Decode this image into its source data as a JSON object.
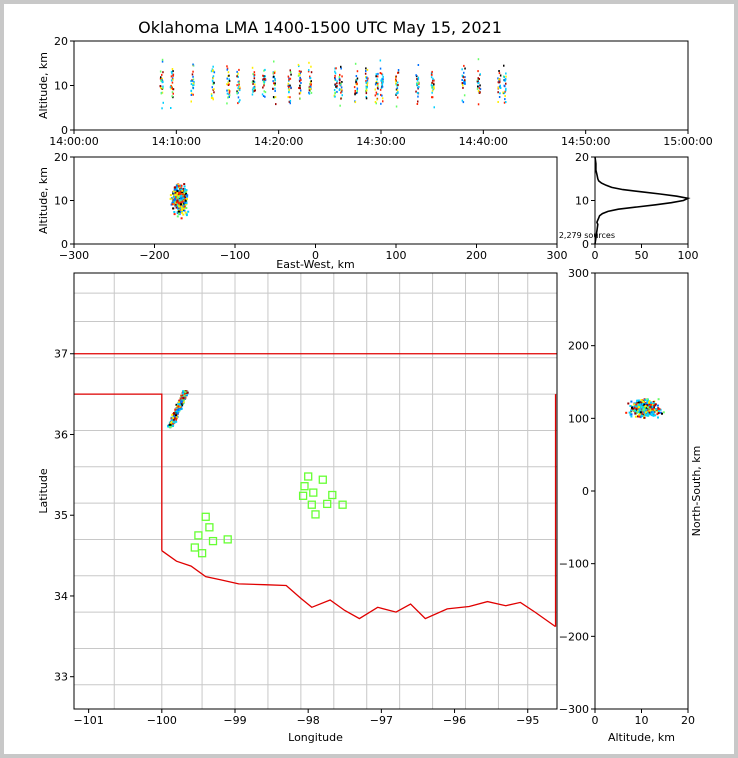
{
  "title": "Oklahoma LMA 1400-1500 UTC May 15, 2021",
  "source_count_label": "2,279 sources",
  "colors": {
    "frame": "#c8c8c8",
    "state_border": "#e00000",
    "county_lines": "#c8c8c8",
    "stations": "#66ff33",
    "profile": "#000000",
    "source_palette": [
      "#00cfff",
      "#0070ff",
      "#66ff66",
      "#ffee00",
      "#ff2200",
      "#990000",
      "#000000"
    ]
  },
  "chart_data": [
    {
      "id": "time-height",
      "type": "scatter",
      "title": "",
      "ylabel": "Altitude, km",
      "xlabel": "",
      "xlim": [
        "14:00:00",
        "15:00:00"
      ],
      "ylim": [
        0,
        20
      ],
      "xticks": [
        "14:00:00",
        "14:10:00",
        "14:20:00",
        "14:30:00",
        "14:40:00",
        "14:50:00",
        "15:00:00"
      ],
      "yticks": [
        "0",
        "10",
        "20"
      ],
      "flash_times": [
        "14:08:30",
        "14:09:30",
        "14:11:30",
        "14:13:30",
        "14:15:00",
        "14:16:00",
        "14:17:30",
        "14:18:30",
        "14:19:30",
        "14:21:00",
        "14:22:00",
        "14:23:00",
        "14:25:30",
        "14:26:00",
        "14:27:30",
        "14:28:30",
        "14:29:30",
        "14:30:00",
        "14:31:30",
        "14:33:30",
        "14:35:00",
        "14:38:00",
        "14:39:30",
        "14:41:30",
        "14:42:00"
      ],
      "altitude_range_km": [
        3,
        19
      ]
    },
    {
      "id": "ew-height",
      "type": "scatter",
      "xlabel": "East-West, km",
      "ylabel": "Altitude, km",
      "xlim": [
        -300,
        300
      ],
      "ylim": [
        0,
        20
      ],
      "xticks": [
        "−300",
        "−200",
        "−100",
        "0",
        "100",
        "200",
        "300"
      ],
      "yticks": [
        "0",
        "10",
        "20"
      ],
      "cluster": {
        "x_range_km": [
          -190,
          -150
        ],
        "z_range_km": [
          3,
          20
        ]
      }
    },
    {
      "id": "height-histogram",
      "type": "line",
      "xlim": [
        0,
        100
      ],
      "ylim": [
        0,
        20
      ],
      "xticks": [
        "0",
        "50",
        "100"
      ],
      "yticks": [
        "0",
        "10",
        "20"
      ],
      "x": [
        0,
        2,
        3,
        2,
        3,
        4,
        5,
        8,
        14,
        25,
        45,
        65,
        82,
        95,
        100,
        88,
        70,
        50,
        30,
        18,
        12,
        7,
        4,
        3,
        2,
        1,
        1,
        0
      ],
      "y": [
        0,
        3,
        4.5,
        5,
        5.5,
        6,
        6.5,
        7,
        7.5,
        8,
        8.5,
        9,
        9.5,
        10,
        10.5,
        11,
        11.5,
        12,
        12.5,
        13,
        13.5,
        14,
        14.5,
        15,
        16,
        17,
        18.5,
        20
      ]
    },
    {
      "id": "plan-view",
      "type": "map",
      "xlabel": "Longitude",
      "ylabel": "Latitude",
      "xlim": [
        -101.2,
        -94.6
      ],
      "ylim": [
        32.6,
        38.0
      ],
      "xticks": [
        "−101",
        "−100",
        "−99",
        "−98",
        "−97",
        "−96",
        "−95"
      ],
      "yticks": [
        "33",
        "34",
        "35",
        "36",
        "37"
      ],
      "stations": [
        [
          -99.5,
          34.75
        ],
        [
          -99.35,
          34.85
        ],
        [
          -99.3,
          34.68
        ],
        [
          -99.4,
          34.98
        ],
        [
          -99.55,
          34.6
        ],
        [
          -99.45,
          34.53
        ],
        [
          -99.1,
          34.7
        ],
        [
          -98.0,
          35.48
        ],
        [
          -98.05,
          35.36
        ],
        [
          -98.07,
          35.24
        ],
        [
          -97.93,
          35.28
        ],
        [
          -97.8,
          35.44
        ],
        [
          -97.67,
          35.25
        ],
        [
          -97.74,
          35.14
        ],
        [
          -97.95,
          35.13
        ],
        [
          -97.9,
          35.01
        ],
        [
          -97.53,
          35.13
        ]
      ],
      "cluster": {
        "lon_range": [
          -99.95,
          -99.6
        ],
        "lat_range": [
          36.1,
          36.55
        ]
      }
    },
    {
      "id": "ns-height",
      "type": "scatter",
      "xlabel": "Altitude, km",
      "ylabel": "North-South, km",
      "xlim": [
        0,
        20
      ],
      "ylim": [
        -300,
        300
      ],
      "xticks": [
        "0",
        "10",
        "20"
      ],
      "yticks": [
        "−300",
        "−200",
        "−100",
        "0",
        "100",
        "200",
        "300"
      ],
      "cluster": {
        "z_range_km": [
          3,
          19
        ],
        "y_range_km": [
          95,
          140
        ]
      }
    }
  ]
}
